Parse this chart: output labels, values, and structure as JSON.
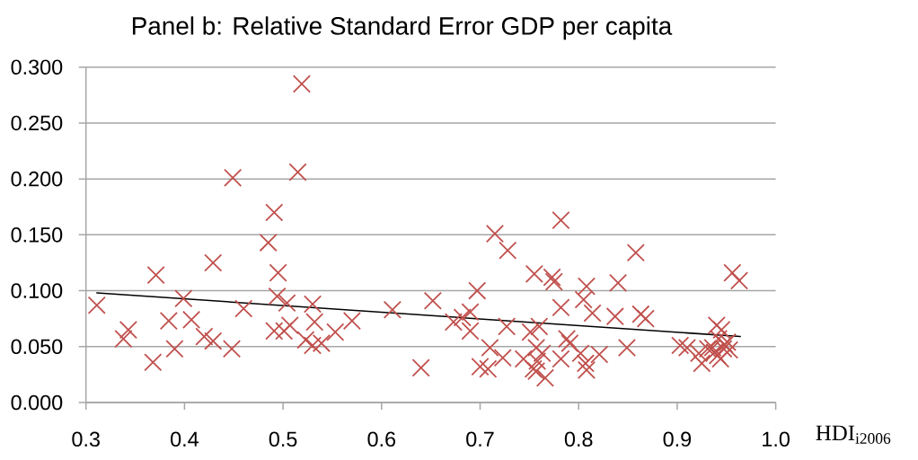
{
  "chart_data": {
    "type": "scatter",
    "title": "Panel b: Relative Standard Error GDP per capita",
    "xlabel": "HDI$_{i2006}$",
    "xlim": [
      0.3,
      1.0
    ],
    "ylim": [
      0,
      0.3
    ],
    "xticks": [
      {
        "value": 0.3,
        "label": "0.3"
      },
      {
        "value": 0.4,
        "label": "0.4"
      },
      {
        "value": 0.5,
        "label": "0.5"
      },
      {
        "value": 0.6,
        "label": "0.6"
      },
      {
        "value": 0.7,
        "label": "0.7"
      },
      {
        "value": 0.8,
        "label": "0.8"
      },
      {
        "value": 0.9,
        "label": "0.9"
      },
      {
        "value": 1.0,
        "label": "1.0"
      }
    ],
    "yticks": [
      {
        "value": 0,
        "label": "0.000"
      },
      {
        "value": 0.05,
        "label": "0.050"
      },
      {
        "value": 0.1,
        "label": "0.100"
      },
      {
        "value": 0.15,
        "label": "0.150"
      },
      {
        "value": 0.2,
        "label": "0.200"
      },
      {
        "value": 0.25,
        "label": "0.250"
      },
      {
        "value": 0.3,
        "label": "0.300"
      }
    ],
    "grid": "y",
    "marker": "cross",
    "series": [
      {
        "color": "#c0504d",
        "x": [
          0.311,
          0.338,
          0.343,
          0.368,
          0.371,
          0.384,
          0.39,
          0.399,
          0.407,
          0.42,
          0.429,
          0.429,
          0.448,
          0.449,
          0.46,
          0.485,
          0.491,
          0.491,
          0.495,
          0.494,
          0.501,
          0.504,
          0.507,
          0.515,
          0.519,
          0.523,
          0.53,
          0.53,
          0.532,
          0.539,
          0.553,
          0.57,
          0.611,
          0.64,
          0.652,
          0.673,
          0.682,
          0.69,
          0.69,
          0.697,
          0.7,
          0.708,
          0.71,
          0.715,
          0.723,
          0.727,
          0.728,
          0.744,
          0.751,
          0.755,
          0.757,
          0.76,
          0.757,
          0.766,
          0.763,
          0.758,
          0.754,
          0.773,
          0.775,
          0.782,
          0.782,
          0.788,
          0.791,
          0.782,
          0.808,
          0.805,
          0.814,
          0.802,
          0.808,
          0.807,
          0.821,
          0.84,
          0.837,
          0.849,
          0.858,
          0.863,
          0.868,
          0.903,
          0.91,
          0.922,
          0.925,
          0.931,
          0.936,
          0.94,
          0.945,
          0.942,
          0.948,
          0.953,
          0.944,
          0.938,
          0.947,
          0.951,
          0.941,
          0.956,
          0.963
        ],
        "values": [
          0.087,
          0.057,
          0.065,
          0.036,
          0.114,
          0.073,
          0.048,
          0.093,
          0.074,
          0.059,
          0.125,
          0.055,
          0.048,
          0.201,
          0.084,
          0.143,
          0.17,
          0.064,
          0.116,
          0.095,
          0.064,
          0.089,
          0.069,
          0.206,
          0.285,
          0.056,
          0.088,
          0.051,
          0.072,
          0.053,
          0.063,
          0.073,
          0.083,
          0.031,
          0.091,
          0.072,
          0.076,
          0.081,
          0.064,
          0.1,
          0.032,
          0.03,
          0.049,
          0.151,
          0.04,
          0.068,
          0.136,
          0.039,
          0.063,
          0.115,
          0.049,
          0.068,
          0.028,
          0.022,
          0.044,
          0.037,
          0.03,
          0.112,
          0.108,
          0.163,
          0.085,
          0.057,
          0.053,
          0.039,
          0.104,
          0.092,
          0.08,
          0.044,
          0.029,
          0.035,
          0.043,
          0.107,
          0.077,
          0.049,
          0.134,
          0.079,
          0.075,
          0.051,
          0.049,
          0.044,
          0.035,
          0.048,
          0.049,
          0.069,
          0.065,
          0.057,
          0.052,
          0.047,
          0.039,
          0.045,
          0.048,
          0.054,
          0.042,
          0.116,
          0.109
        ]
      },
      {
        "type": "line",
        "color": "#000000",
        "marker": "none",
        "x": [
          0.311,
          0.964
        ],
        "values": [
          0.098,
          0.059
        ]
      }
    ]
  }
}
